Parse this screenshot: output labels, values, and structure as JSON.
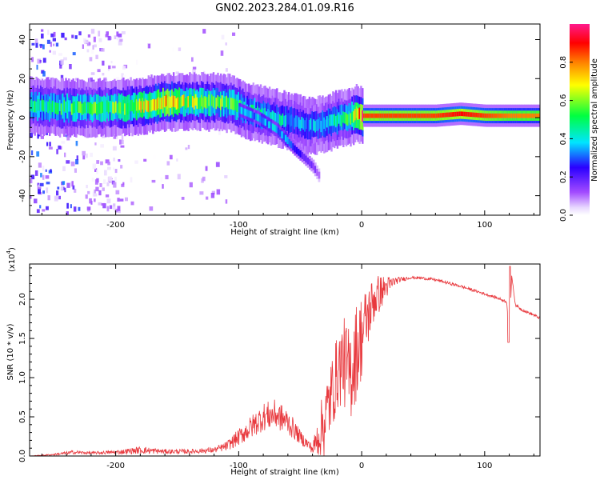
{
  "title": "GN02.2023.284.01.09.R16",
  "chart_data": [
    {
      "type": "heatmap",
      "xlabel": "Height of straight line (km)",
      "ylabel": "Frequency (Hz)",
      "xlim": [
        -270,
        145
      ],
      "ylim": [
        -50,
        48
      ],
      "xticks": [
        -200,
        -100,
        0,
        100
      ],
      "xtick_labels": [
        "-200",
        "-100",
        "0",
        "100"
      ],
      "yticks": [
        -40,
        -20,
        0,
        20,
        40
      ],
      "ytick_labels": [
        "-40",
        "-20",
        "0",
        "20",
        "40"
      ],
      "colorbar": {
        "label": "Normalized spectral amplitude",
        "range": [
          0,
          1
        ],
        "ticks": [
          0.0,
          0.2,
          0.4,
          0.6,
          0.8
        ],
        "tick_labels": [
          "0.0",
          "0.2",
          "0.4",
          "0.6",
          "0.8"
        ],
        "colors": [
          "#ffffff",
          "#c9a6ff",
          "#8a2be2",
          "#0000ff",
          "#00ffff",
          "#00ff00",
          "#ffff00",
          "#ff8000",
          "#ff0000",
          "#ff1493"
        ]
      },
      "ridge": {
        "x": [
          -270,
          -240,
          -200,
          -180,
          -160,
          -140,
          -120,
          -105,
          -95,
          -85,
          -75,
          -65,
          -55,
          -45,
          -38,
          -30,
          -20,
          -10,
          -5,
          0,
          20,
          60,
          80,
          100,
          120,
          145
        ],
        "y": [
          6,
          5,
          5,
          6,
          8,
          8,
          8,
          7,
          4,
          2,
          1,
          -1,
          -2,
          -4,
          -4,
          -3,
          -1,
          0,
          2,
          1,
          1,
          1,
          2,
          1,
          1,
          1
        ],
        "amplitude": [
          0.45,
          0.5,
          0.55,
          0.65,
          0.75,
          0.6,
          0.55,
          0.55,
          0.45,
          0.45,
          0.4,
          0.4,
          0.35,
          0.35,
          0.35,
          0.4,
          0.45,
          0.5,
          0.75,
          0.85,
          0.85,
          0.85,
          0.9,
          0.85,
          0.8,
          0.8
        ]
      },
      "branch": {
        "x": [
          -100,
          -85,
          -70,
          -62,
          -55,
          -48,
          -40,
          -35
        ],
        "y": [
          4,
          0,
          -6,
          -11,
          -16,
          -20,
          -25,
          -30
        ],
        "amplitude": [
          0.35,
          0.35,
          0.35,
          0.35,
          0.25,
          0.2,
          0.15,
          0.1
        ]
      },
      "noise_region": {
        "x_range": [
          -270,
          -100
        ],
        "y_range": [
          -48,
          46
        ],
        "amplitude": 0.15
      }
    },
    {
      "type": "line",
      "xlabel": "Height of straight line (km)",
      "ylabel": "SNR (10 * v/v)",
      "y_multiplier": "(x10^4)",
      "y_multiplier_base": "(x10",
      "y_multiplier_exp": "4",
      "y_multiplier_close": ")",
      "xlim": [
        -270,
        145
      ],
      "ylim": [
        0,
        2.45
      ],
      "xticks": [
        -200,
        -100,
        0,
        100
      ],
      "xtick_labels": [
        "-200",
        "-100",
        "0",
        "100"
      ],
      "yticks": [
        0.0,
        0.5,
        1.0,
        1.5,
        2.0
      ],
      "ytick_labels": [
        "0.0",
        "0.5",
        "1.0",
        "1.5",
        "2.0"
      ],
      "color": "#e8383d",
      "series": [
        {
          "name": "SNR",
          "x": [
            -270,
            -250,
            -235,
            -220,
            -200,
            -180,
            -160,
            -140,
            -120,
            -110,
            -100,
            -90,
            -80,
            -70,
            -60,
            -50,
            -40,
            -30,
            -20,
            -15,
            -10,
            -5,
            0,
            5,
            10,
            20,
            30,
            40,
            50,
            60,
            80,
            100,
            110,
            118,
            120,
            122,
            125,
            130,
            140,
            145
          ],
          "y": [
            0.0,
            0.02,
            0.05,
            0.04,
            0.05,
            0.08,
            0.06,
            0.06,
            0.08,
            0.13,
            0.25,
            0.38,
            0.52,
            0.55,
            0.45,
            0.25,
            0.1,
            0.6,
            1.2,
            1.4,
            1.2,
            1.5,
            1.7,
            1.9,
            2.1,
            2.2,
            2.25,
            2.28,
            2.27,
            2.25,
            2.17,
            2.07,
            2.02,
            1.97,
            1.5,
            2.3,
            1.93,
            1.87,
            1.8,
            1.76
          ],
          "noise_amplitude": [
            0.0,
            0.02,
            0.04,
            0.03,
            0.04,
            0.08,
            0.05,
            0.05,
            0.06,
            0.1,
            0.18,
            0.25,
            0.3,
            0.32,
            0.28,
            0.15,
            0.1,
            0.6,
            0.6,
            0.7,
            0.8,
            0.8,
            0.7,
            0.5,
            0.4,
            0.18,
            0.06,
            0.03,
            0.03,
            0.03,
            0.03,
            0.03,
            0.03,
            0.03,
            0.0,
            0.0,
            0.03,
            0.03,
            0.03,
            0.03
          ]
        }
      ]
    }
  ]
}
